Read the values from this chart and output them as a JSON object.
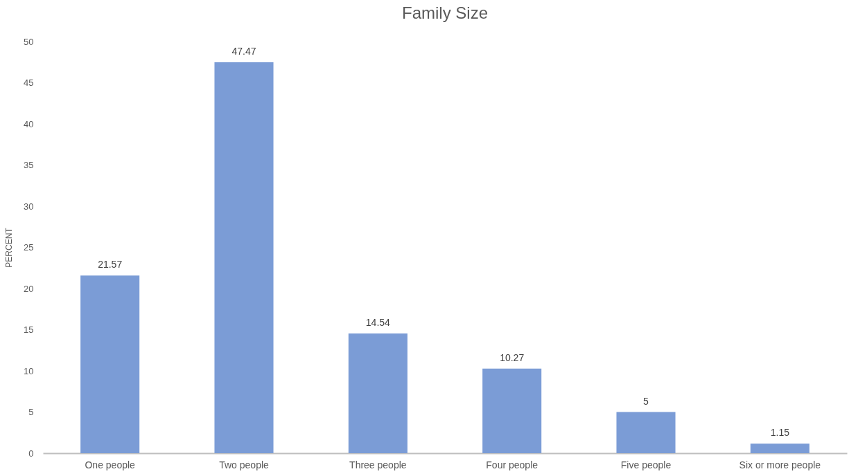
{
  "chart_data": {
    "type": "bar",
    "title": "Family Size",
    "ylabel": "PERCENT",
    "categories": [
      "One people",
      "Two people",
      "Three people",
      "Four people",
      "Five people",
      "Six or more people"
    ],
    "values": [
      21.57,
      47.47,
      14.54,
      10.27,
      5,
      1.15
    ],
    "color": "#7b9cd6",
    "ylim": [
      0,
      50
    ],
    "yticks": [
      0,
      5,
      10,
      15,
      20,
      25,
      30,
      35,
      40,
      45,
      50
    ],
    "data_labels": true
  }
}
